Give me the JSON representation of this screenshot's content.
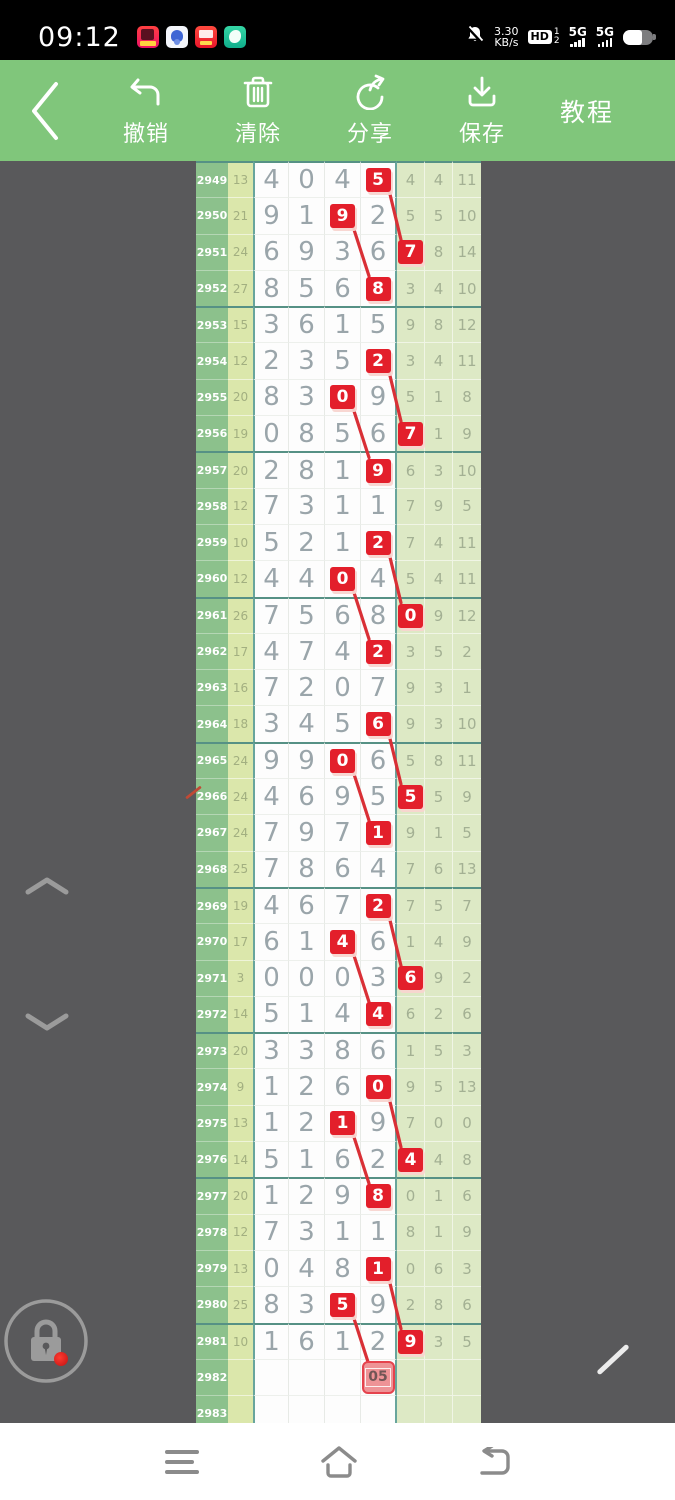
{
  "status_bar": {
    "time": "09:12",
    "net_speed_value": "3.30",
    "net_speed_unit": "KB/s",
    "hd_label": "HD",
    "sim1": "1",
    "sim2": "2",
    "net1": "5G",
    "net2": "5G"
  },
  "toolbar": {
    "undo_label": "撤销",
    "clear_label": "清除",
    "share_label": "分享",
    "save_label": "保存",
    "tutorial_label": "教程"
  },
  "colors": {
    "toolbar_green": "#80c67b",
    "canvas_gray": "#59595b",
    "id_column_green": "#8cc18c",
    "sum_column_green": "#dbe7ab",
    "value_column_green": "#dde9c5",
    "mark_red": "#e31f2b",
    "line_red": "#d93036",
    "group_border_teal": "#569185"
  },
  "table": {
    "columns": [
      "issue",
      "sum",
      "digit1",
      "digit2",
      "digit3",
      "digit4",
      "stat1",
      "stat2",
      "stat3"
    ],
    "rows": [
      {
        "id": "2949",
        "sum": "13",
        "d": [
          "4",
          "0",
          "4",
          "5"
        ],
        "g": [
          "4",
          "4",
          "11"
        ],
        "red": 3
      },
      {
        "id": "2950",
        "sum": "21",
        "d": [
          "9",
          "1",
          "9",
          "2"
        ],
        "g": [
          "5",
          "5",
          "10"
        ],
        "red": 2
      },
      {
        "id": "2951",
        "sum": "24",
        "d": [
          "6",
          "9",
          "3",
          "6"
        ],
        "g": [
          "7",
          "8",
          "14"
        ],
        "red": 4
      },
      {
        "id": "2952",
        "sum": "27",
        "d": [
          "8",
          "5",
          "6",
          "8"
        ],
        "g": [
          "3",
          "4",
          "10"
        ],
        "red": 3
      },
      {
        "id": "2953",
        "sum": "15",
        "d": [
          "3",
          "6",
          "1",
          "5"
        ],
        "g": [
          "9",
          "8",
          "12"
        ],
        "red": -1
      },
      {
        "id": "2954",
        "sum": "12",
        "d": [
          "2",
          "3",
          "5",
          "2"
        ],
        "g": [
          "3",
          "4",
          "11"
        ],
        "red": 3
      },
      {
        "id": "2955",
        "sum": "20",
        "d": [
          "8",
          "3",
          "0",
          "9"
        ],
        "g": [
          "5",
          "1",
          "8"
        ],
        "red": 2
      },
      {
        "id": "2956",
        "sum": "19",
        "d": [
          "0",
          "8",
          "5",
          "6"
        ],
        "g": [
          "7",
          "1",
          "9"
        ],
        "red": 4
      },
      {
        "id": "2957",
        "sum": "20",
        "d": [
          "2",
          "8",
          "1",
          "9"
        ],
        "g": [
          "6",
          "3",
          "10"
        ],
        "red": 3
      },
      {
        "id": "2958",
        "sum": "12",
        "d": [
          "7",
          "3",
          "1",
          "1"
        ],
        "g": [
          "7",
          "9",
          "5"
        ],
        "red": -1
      },
      {
        "id": "2959",
        "sum": "10",
        "d": [
          "5",
          "2",
          "1",
          "2"
        ],
        "g": [
          "7",
          "4",
          "11"
        ],
        "red": 3
      },
      {
        "id": "2960",
        "sum": "12",
        "d": [
          "4",
          "4",
          "0",
          "4"
        ],
        "g": [
          "5",
          "4",
          "11"
        ],
        "red": 2
      },
      {
        "id": "2961",
        "sum": "26",
        "d": [
          "7",
          "5",
          "6",
          "8"
        ],
        "g": [
          "0",
          "9",
          "12"
        ],
        "red": 4
      },
      {
        "id": "2962",
        "sum": "17",
        "d": [
          "4",
          "7",
          "4",
          "2"
        ],
        "g": [
          "3",
          "5",
          "2"
        ],
        "red": 3
      },
      {
        "id": "2963",
        "sum": "16",
        "d": [
          "7",
          "2",
          "0",
          "7"
        ],
        "g": [
          "9",
          "3",
          "1"
        ],
        "red": -1
      },
      {
        "id": "2964",
        "sum": "18",
        "d": [
          "3",
          "4",
          "5",
          "6"
        ],
        "g": [
          "9",
          "3",
          "10"
        ],
        "red": 3
      },
      {
        "id": "2965",
        "sum": "24",
        "d": [
          "9",
          "9",
          "0",
          "6"
        ],
        "g": [
          "5",
          "8",
          "11"
        ],
        "red": 2
      },
      {
        "id": "2966",
        "sum": "24",
        "d": [
          "4",
          "6",
          "9",
          "5"
        ],
        "g": [
          "5",
          "5",
          "9"
        ],
        "red": 4
      },
      {
        "id": "2967",
        "sum": "24",
        "d": [
          "7",
          "9",
          "7",
          "1"
        ],
        "g": [
          "9",
          "1",
          "5"
        ],
        "red": 3
      },
      {
        "id": "2968",
        "sum": "25",
        "d": [
          "7",
          "8",
          "6",
          "4"
        ],
        "g": [
          "7",
          "6",
          "13"
        ],
        "red": -1
      },
      {
        "id": "2969",
        "sum": "19",
        "d": [
          "4",
          "6",
          "7",
          "2"
        ],
        "g": [
          "7",
          "5",
          "7"
        ],
        "red": 3
      },
      {
        "id": "2970",
        "sum": "17",
        "d": [
          "6",
          "1",
          "4",
          "6"
        ],
        "g": [
          "1",
          "4",
          "9"
        ],
        "red": 2
      },
      {
        "id": "2971",
        "sum": "3",
        "d": [
          "0",
          "0",
          "0",
          "3"
        ],
        "g": [
          "6",
          "9",
          "2"
        ],
        "red": 4
      },
      {
        "id": "2972",
        "sum": "14",
        "d": [
          "5",
          "1",
          "4",
          "4"
        ],
        "g": [
          "6",
          "2",
          "6"
        ],
        "red": 3
      },
      {
        "id": "2973",
        "sum": "20",
        "d": [
          "3",
          "3",
          "8",
          "6"
        ],
        "g": [
          "1",
          "5",
          "3"
        ],
        "red": -1
      },
      {
        "id": "2974",
        "sum": "9",
        "d": [
          "1",
          "2",
          "6",
          "0"
        ],
        "g": [
          "9",
          "5",
          "13"
        ],
        "red": 3
      },
      {
        "id": "2975",
        "sum": "13",
        "d": [
          "1",
          "2",
          "1",
          "9"
        ],
        "g": [
          "7",
          "0",
          "0"
        ],
        "red": 2
      },
      {
        "id": "2976",
        "sum": "14",
        "d": [
          "5",
          "1",
          "6",
          "2"
        ],
        "g": [
          "4",
          "4",
          "8"
        ],
        "red": 4
      },
      {
        "id": "2977",
        "sum": "20",
        "d": [
          "1",
          "2",
          "9",
          "8"
        ],
        "g": [
          "0",
          "1",
          "6"
        ],
        "red": 3
      },
      {
        "id": "2978",
        "sum": "12",
        "d": [
          "7",
          "3",
          "1",
          "1"
        ],
        "g": [
          "8",
          "1",
          "9"
        ],
        "red": -1
      },
      {
        "id": "2979",
        "sum": "13",
        "d": [
          "0",
          "4",
          "8",
          "1"
        ],
        "g": [
          "0",
          "6",
          "3"
        ],
        "red": 3
      },
      {
        "id": "2980",
        "sum": "25",
        "d": [
          "8",
          "3",
          "5",
          "9"
        ],
        "g": [
          "2",
          "8",
          "6"
        ],
        "red": 2
      },
      {
        "id": "2981",
        "sum": "10",
        "d": [
          "1",
          "6",
          "1",
          "2"
        ],
        "g": [
          "9",
          "3",
          "5"
        ],
        "red": 4
      },
      {
        "id": "2982",
        "sum": "",
        "d": [
          "",
          "",
          "",
          ""
        ],
        "g": [
          "",
          "",
          ""
        ],
        "red": -1,
        "special": {
          "col": 3,
          "text": "05"
        }
      },
      {
        "id": "2983",
        "sum": "",
        "d": [
          "",
          "",
          "",
          ""
        ],
        "g": [
          "",
          "",
          ""
        ],
        "red": -1
      }
    ],
    "lines": [
      {
        "from": [
          "2949",
          3
        ],
        "to": [
          "2951",
          4
        ]
      },
      {
        "from": [
          "2950",
          2
        ],
        "to": [
          "2952",
          3
        ]
      },
      {
        "from": [
          "2954",
          3
        ],
        "to": [
          "2956",
          4
        ]
      },
      {
        "from": [
          "2955",
          2
        ],
        "to": [
          "2957",
          3
        ]
      },
      {
        "from": [
          "2959",
          3
        ],
        "to": [
          "2961",
          4
        ]
      },
      {
        "from": [
          "2960",
          2
        ],
        "to": [
          "2962",
          3
        ]
      },
      {
        "from": [
          "2964",
          3
        ],
        "to": [
          "2966",
          4
        ]
      },
      {
        "from": [
          "2965",
          2
        ],
        "to": [
          "2967",
          3
        ]
      },
      {
        "from": [
          "2969",
          3
        ],
        "to": [
          "2971",
          4
        ]
      },
      {
        "from": [
          "2970",
          2
        ],
        "to": [
          "2972",
          3
        ]
      },
      {
        "from": [
          "2974",
          3
        ],
        "to": [
          "2976",
          4
        ]
      },
      {
        "from": [
          "2975",
          2
        ],
        "to": [
          "2977",
          3
        ]
      },
      {
        "from": [
          "2979",
          3
        ],
        "to": [
          "2981",
          4
        ]
      },
      {
        "from": [
          "2980",
          2
        ],
        "to": [
          "2982",
          3
        ]
      }
    ]
  }
}
